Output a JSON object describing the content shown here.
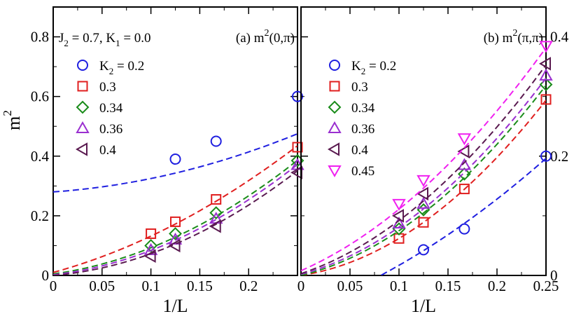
{
  "chart_data": [
    {
      "type": "scatter",
      "panel": "a",
      "title": "(a) m^2(0,π)",
      "title_parts": {
        "prefix": "(a) m",
        "exp": "2",
        "arg": "(0,π)"
      },
      "annotation": {
        "j2": "J",
        "j2_sub": "2",
        "j2_rest": " = 0.7, K",
        "k1_sub": "1",
        "k1_rest": " = 0.0"
      },
      "xlabel": "1/L",
      "ylabel": "m^2",
      "ylabel_parts": {
        "base": "m",
        "exp": "2"
      },
      "xlim": [
        0,
        0.25
      ],
      "ylim": [
        0,
        0.9
      ],
      "xticks": [
        0,
        0.05,
        0.1,
        0.15,
        0.2
      ],
      "xtick_labels": [
        "0",
        "0.05",
        "0.1",
        "0.15",
        "0.2"
      ],
      "yticks": [
        0,
        0.2,
        0.4,
        0.6,
        0.8
      ],
      "ytick_labels": [
        "0",
        "0.2",
        "0.4",
        "0.6",
        "0.8"
      ],
      "series": [
        {
          "name": "K2 = 0.2",
          "label": "0.2",
          "label_prefix": "K",
          "label_sub": "2",
          "label_rest": " = 0.2",
          "marker": "circle",
          "color": "#1f1fe0",
          "x": [
            0.125,
            0.1667,
            0.25
          ],
          "y": [
            0.39,
            0.45,
            0.6
          ],
          "fit": [
            0.28,
            0.23,
            2.2
          ]
        },
        {
          "name": "0.3",
          "label": "0.3",
          "marker": "square",
          "color": "#e01f1f",
          "x": [
            0.1,
            0.125,
            0.1667,
            0.25
          ],
          "y": [
            0.14,
            0.18,
            0.255,
            0.43
          ],
          "fit": [
            0.01,
            0.9,
            3.2
          ]
        },
        {
          "name": "0.34",
          "label": "0.34",
          "marker": "diamond",
          "color": "#1a8c1a",
          "x": [
            0.1,
            0.125,
            0.1667,
            0.25
          ],
          "y": [
            0.1,
            0.14,
            0.21,
            0.385
          ],
          "fit": [
            0.005,
            0.45,
            4.3
          ]
        },
        {
          "name": "0.36",
          "label": "0.36",
          "marker": "triangle-up",
          "color": "#9a2fd0",
          "x": [
            0.1,
            0.125,
            0.1667,
            0.25
          ],
          "y": [
            0.085,
            0.12,
            0.19,
            0.37
          ],
          "fit": [
            0.002,
            0.38,
            4.4
          ]
        },
        {
          "name": "0.4",
          "label": "0.4",
          "marker": "triangle-left",
          "color": "#5a1a50",
          "x": [
            0.1,
            0.125,
            0.1667,
            0.25
          ],
          "y": [
            0.065,
            0.1,
            0.165,
            0.345
          ],
          "fit": [
            0.0,
            0.28,
            4.5
          ]
        }
      ]
    },
    {
      "type": "scatter",
      "panel": "b",
      "title": "(b) m^2(π,π)",
      "title_parts": {
        "prefix": "(b) m",
        "exp": "2",
        "arg": "(π,π)"
      },
      "xlabel": "1/L",
      "xlim": [
        0,
        0.25
      ],
      "ylim": [
        0,
        0.45
      ],
      "xticks": [
        0,
        0.05,
        0.1,
        0.15,
        0.2,
        0.25
      ],
      "xtick_labels": [
        "0",
        "0.05",
        "0.1",
        "0.15",
        "0.2",
        "0.25"
      ],
      "yticks": [
        0,
        0.2,
        0.4
      ],
      "ytick_labels": [
        "0",
        "0.2",
        "0.4"
      ],
      "yaxis_side": "right",
      "series": [
        {
          "name": "K2 = 0.2",
          "label": "0.2",
          "label_prefix": "K",
          "label_sub": "2",
          "label_rest": " = 0.2",
          "marker": "circle",
          "color": "#1f1fe0",
          "x": [
            0.125,
            0.1667,
            0.25
          ],
          "y": [
            0.043,
            0.078,
            0.2
          ],
          "fit": [
            -0.06,
            0.6,
            1.7
          ]
        },
        {
          "name": "0.3",
          "label": "0.3",
          "marker": "square",
          "color": "#e01f1f",
          "x": [
            0.1,
            0.125,
            0.1667,
            0.25
          ],
          "y": [
            0.062,
            0.089,
            0.145,
            0.295
          ],
          "fit": [
            0.0,
            0.25,
            3.7
          ]
        },
        {
          "name": "0.34",
          "label": "0.34",
          "marker": "diamond",
          "color": "#1a8c1a",
          "x": [
            0.1,
            0.125,
            0.1667,
            0.25
          ],
          "y": [
            0.078,
            0.11,
            0.17,
            0.32
          ],
          "fit": [
            0.0,
            0.4,
            3.5
          ]
        },
        {
          "name": "0.36",
          "label": "0.36",
          "marker": "triangle-up",
          "color": "#9a2fd0",
          "x": [
            0.1,
            0.125,
            0.1667,
            0.25
          ],
          "y": [
            0.087,
            0.12,
            0.185,
            0.335
          ],
          "fit": [
            0.002,
            0.44,
            3.5
          ]
        },
        {
          "name": "0.4",
          "label": "0.4",
          "marker": "triangle-left",
          "color": "#5a1a50",
          "x": [
            0.1,
            0.125,
            0.1667,
            0.25
          ],
          "y": [
            0.1,
            0.137,
            0.208,
            0.355
          ],
          "fit": [
            0.003,
            0.55,
            3.4
          ]
        },
        {
          "name": "0.45",
          "label": "0.45",
          "marker": "triangle-down",
          "color": "#f020f0",
          "x": [
            0.1,
            0.125,
            0.1667,
            0.25
          ],
          "y": [
            0.12,
            0.16,
            0.23,
            0.385
          ],
          "fit": [
            0.008,
            0.72,
            3.1
          ]
        }
      ]
    }
  ]
}
